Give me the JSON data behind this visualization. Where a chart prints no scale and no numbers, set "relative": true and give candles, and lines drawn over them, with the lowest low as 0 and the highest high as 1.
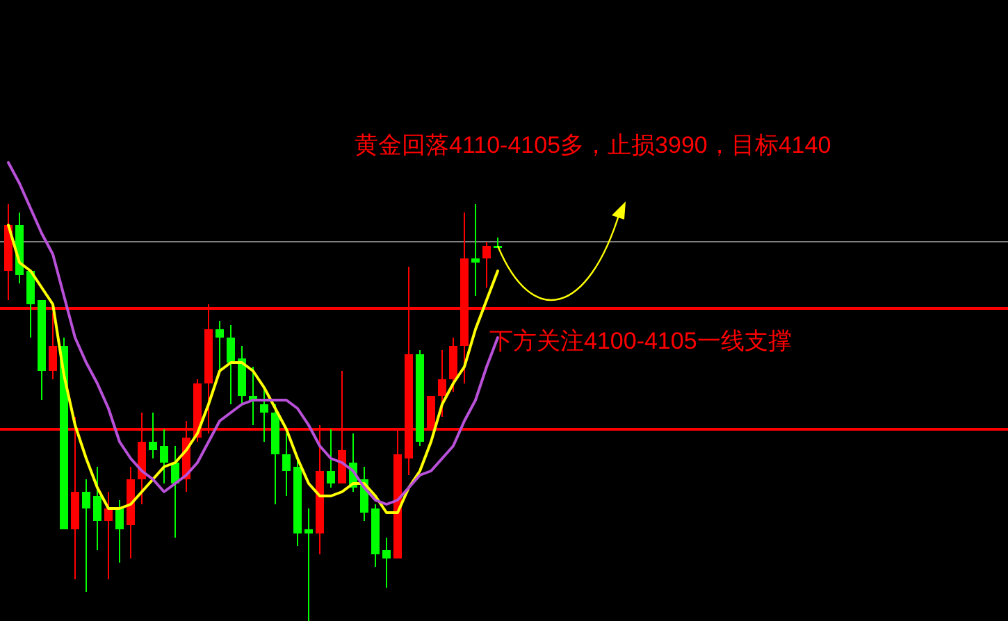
{
  "chart_data": {
    "type": "candlestick",
    "relative": true,
    "title": "黄金回落4110-4105多，止损3990，目标4140",
    "annotations": [
      "下方关注4100-4105一线支撑"
    ],
    "categories": [
      null,
      null,
      null,
      null,
      null,
      null,
      null,
      null,
      null,
      null,
      null,
      null,
      null,
      null,
      null,
      null,
      null,
      null,
      null,
      null,
      null,
      null,
      null,
      null,
      null,
      null,
      null,
      null,
      null,
      null,
      null,
      null,
      null,
      null,
      null,
      null,
      null,
      null,
      null,
      null,
      null,
      null,
      null,
      null,
      null
    ],
    "ohlc": [
      [
        0.84,
        1.0,
        0.77,
        0.95
      ],
      [
        0.95,
        0.98,
        0.81,
        0.83
      ],
      [
        0.84,
        0.84,
        0.68,
        0.76
      ],
      [
        0.77,
        0.77,
        0.53,
        0.6
      ],
      [
        0.6,
        0.74,
        0.58,
        0.66
      ],
      [
        0.66,
        0.68,
        0.22,
        0.22
      ],
      [
        0.22,
        0.49,
        0.1,
        0.31
      ],
      [
        0.31,
        0.34,
        0.07,
        0.27
      ],
      [
        0.3,
        0.37,
        0.17,
        0.24
      ],
      [
        0.24,
        0.31,
        0.1,
        0.27
      ],
      [
        0.27,
        0.29,
        0.14,
        0.22
      ],
      [
        0.23,
        0.37,
        0.15,
        0.34
      ],
      [
        0.34,
        0.5,
        0.28,
        0.43
      ],
      [
        0.43,
        0.5,
        0.39,
        0.41
      ],
      [
        0.42,
        0.46,
        0.33,
        0.38
      ],
      [
        0.38,
        0.42,
        0.2,
        0.33
      ],
      [
        0.34,
        0.48,
        0.31,
        0.44
      ],
      [
        0.44,
        0.58,
        0.43,
        0.57
      ],
      [
        0.57,
        0.76,
        0.45,
        0.7
      ],
      [
        0.7,
        0.72,
        0.6,
        0.68
      ],
      [
        0.68,
        0.71,
        0.52,
        0.62
      ],
      [
        0.63,
        0.66,
        0.52,
        0.54
      ],
      [
        0.54,
        0.61,
        0.47,
        0.53
      ],
      [
        0.52,
        0.56,
        0.43,
        0.5
      ],
      [
        0.5,
        0.52,
        0.28,
        0.4
      ],
      [
        0.4,
        0.45,
        0.3,
        0.36
      ],
      [
        0.37,
        0.39,
        0.18,
        0.21
      ],
      [
        0.22,
        0.27,
        0,
        0.21
      ],
      [
        0.21,
        0.47,
        0.16,
        0.36
      ],
      [
        0.36,
        0.46,
        0.32,
        0.33
      ],
      [
        0.33,
        0.6,
        0.33,
        0.41
      ],
      [
        0.38,
        0.45,
        0.31,
        0.32
      ],
      [
        0.34,
        0.37,
        0.24,
        0.26
      ],
      [
        0.27,
        0.28,
        0.13,
        0.16
      ],
      [
        0.17,
        0.2,
        0.08,
        0.15
      ],
      [
        0.15,
        0.46,
        0.15,
        0.4
      ],
      [
        0.39,
        0.85,
        0.35,
        0.64
      ],
      [
        0.64,
        0.65,
        0.42,
        0.43
      ],
      [
        0.46,
        0.54,
        0.46,
        0.54
      ],
      [
        0.54,
        0.65,
        0.49,
        0.58
      ],
      [
        0.58,
        0.68,
        0.55,
        0.66
      ],
      [
        0.66,
        0.98,
        0.57,
        0.87
      ],
      [
        0.87,
        1.0,
        0.78,
        0.86
      ],
      [
        0.87,
        0.91,
        0.8,
        0.9
      ],
      [
        0.9,
        0.92,
        0.9,
        0.9
      ]
    ],
    "colors": [
      "#ff0000",
      "#00ff00",
      "#00ff00",
      "#00ff00",
      "#ff0000",
      "#00ff00",
      "#ff0000",
      "#00ff00",
      "#00ff00",
      "#ff0000",
      "#00ff00",
      "#ff0000",
      "#ff0000",
      "#00ff00",
      "#00ff00",
      "#00ff00",
      "#ff0000",
      "#ff0000",
      "#ff0000",
      "#00ff00",
      "#00ff00",
      "#00ff00",
      "#00ff00",
      "#00ff00",
      "#00ff00",
      "#00ff00",
      "#00ff00",
      "#00ff00",
      "#ff0000",
      "#00ff00",
      "#ff0000",
      "#00ff00",
      "#00ff00",
      "#00ff00",
      "#00ff00",
      "#ff0000",
      "#ff0000",
      "#00ff00",
      "#ff0000",
      "#ff0000",
      "#ff0000",
      "#ff0000",
      "#00ff00",
      "#ff0000",
      "#00ff00"
    ],
    "series": [
      {
        "type": "line",
        "color": "#ffff00",
        "values": [
          0.95,
          0.86,
          0.84,
          0.8,
          0.76,
          0.59,
          0.47,
          0.39,
          0.32,
          0.27,
          0.27,
          0.28,
          0.31,
          0.34,
          0.37,
          0.38,
          0.41,
          0.45,
          0.52,
          0.6,
          0.62,
          0.62,
          0.6,
          0.56,
          0.51,
          0.46,
          0.39,
          0.33,
          0.3,
          0.3,
          0.31,
          0.33,
          0.33,
          0.3,
          0.26,
          0.26,
          0.32,
          0.36,
          0.43,
          0.52,
          0.57,
          0.61,
          0.7,
          0.77,
          0.84
        ]
      },
      {
        "type": "line",
        "color": "#b850d8",
        "values": [
          1.1,
          1.05,
          0.99,
          0.93,
          0.88,
          0.78,
          0.68,
          0.62,
          0.57,
          0.51,
          0.43,
          0.39,
          0.36,
          0.34,
          0.31,
          0.33,
          0.35,
          0.38,
          0.43,
          0.48,
          0.5,
          0.52,
          0.53,
          0.53,
          0.53,
          0.53,
          0.51,
          0.47,
          0.42,
          0.39,
          0.38,
          0.36,
          0.32,
          0.29,
          0.28,
          0.29,
          0.32,
          0.35,
          0.36,
          0.39,
          0.42,
          0.48,
          0.53,
          0.61,
          0.68
        ]
      }
    ],
    "ref_lines": [
      {
        "axis": "y",
        "value": 0.91,
        "color": "#808080"
      },
      {
        "axis": "y",
        "value": 0.75,
        "color": "#ff0000"
      },
      {
        "axis": "y",
        "value": 0.46,
        "color": "#ff0000"
      }
    ]
  }
}
